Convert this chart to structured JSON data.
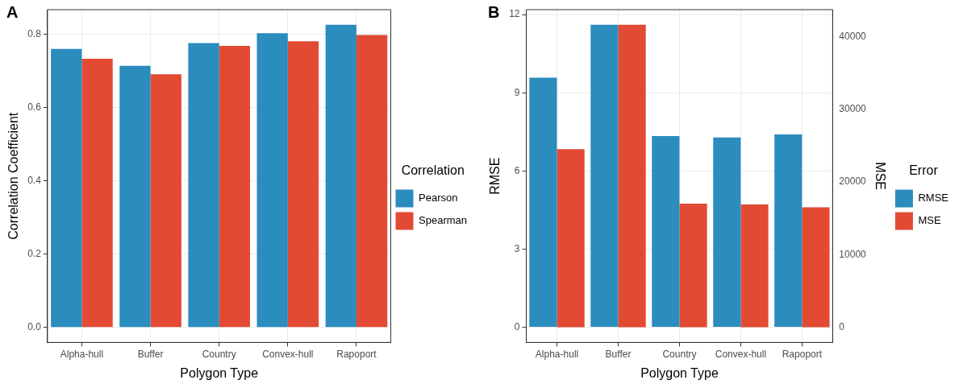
{
  "chart_data": [
    {
      "type": "bar",
      "xlabel": "Polygon Type",
      "ylabel": "Correlation Coefficient",
      "legend_title": "Correlation",
      "legend": "right",
      "grid": true,
      "annotations": [
        "A"
      ],
      "categories": [
        "Alpha-hull",
        "Buffer",
        "Country",
        "Convex-hull",
        "Rapoport"
      ],
      "ylim": [
        -0.041,
        0.867
      ],
      "yticks": [
        {
          "value": 0,
          "label": "0.0"
        },
        {
          "value": 0.2,
          "label": "0.2"
        },
        {
          "value": 0.4,
          "label": "0.4"
        },
        {
          "value": 0.6,
          "label": "0.6"
        },
        {
          "value": 0.8,
          "label": "0.8"
        }
      ],
      "series": [
        {
          "name": "Pearson",
          "color": "#2b8cbe",
          "values": [
            0.76,
            0.714,
            0.776,
            0.803,
            0.826
          ]
        },
        {
          "name": "Spearman",
          "color": "#e34a33",
          "values": [
            0.733,
            0.691,
            0.768,
            0.781,
            0.798
          ]
        }
      ]
    },
    {
      "type": "bar",
      "xlabel": "Polygon Type",
      "ylabel": "RMSE",
      "y2label": "MSE",
      "legend_title": "Error",
      "legend": "right",
      "grid": true,
      "annotations": [
        "B"
      ],
      "categories": [
        "Alpha-hull",
        "Buffer",
        "Country",
        "Convex-hull",
        "Rapoport"
      ],
      "ylim": [
        -0.58,
        12.19
      ],
      "yticks": [
        0,
        3,
        6,
        9,
        12
      ],
      "y2lim": [
        -2080,
        43680
      ],
      "y2ticks": [
        0,
        10000,
        20000,
        30000,
        40000
      ],
      "series": [
        {
          "name": "RMSE",
          "color": "#2b8cbe",
          "values": [
            9.58,
            11.61,
            7.34,
            7.29,
            7.4
          ]
        },
        {
          "name": "MSE",
          "color": "#e34a33",
          "axis": "y2",
          "values": [
            24500,
            41600,
            17000,
            16900,
            16500
          ]
        }
      ]
    }
  ]
}
